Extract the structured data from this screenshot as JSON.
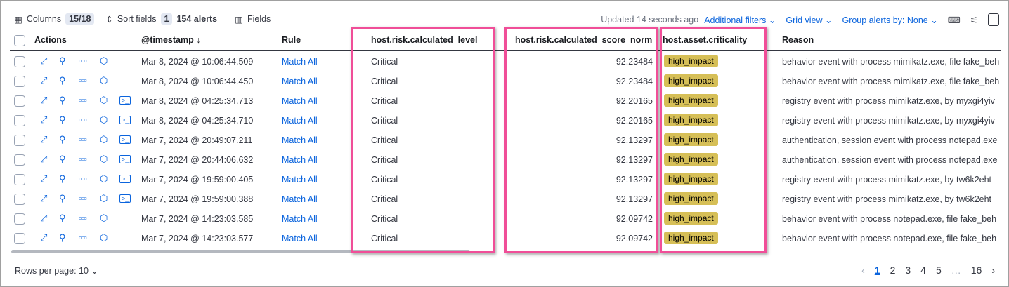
{
  "toolbar": {
    "columns_label": "Columns",
    "columns_count": "15/18",
    "sort_label": "Sort fields",
    "sort_count": "1",
    "alerts": "154 alerts",
    "fields_label": "Fields",
    "updated": "Updated 14 seconds ago",
    "additional_filters": "Additional filters",
    "grid_view": "Grid view",
    "group_by": "Group alerts by: None"
  },
  "headers": {
    "actions": "Actions",
    "timestamp": "@timestamp",
    "rule": "Rule",
    "level": "host.risk.calculated_level",
    "score": "host.risk.calculated_score_norm",
    "criticality": "host.asset.criticality",
    "reason": "Reason"
  },
  "rows": [
    {
      "timestamp": "Mar 8, 2024 @ 10:06:44.509",
      "rule": "Match All",
      "level": "Critical",
      "score": "92.23484",
      "criticality": "high_impact",
      "reason": "behavior event with process mimikatz.exe, file fake_beh",
      "terminal": false
    },
    {
      "timestamp": "Mar 8, 2024 @ 10:06:44.450",
      "rule": "Match All",
      "level": "Critical",
      "score": "92.23484",
      "criticality": "high_impact",
      "reason": "behavior event with process mimikatz.exe, file fake_beh",
      "terminal": false
    },
    {
      "timestamp": "Mar 8, 2024 @ 04:25:34.713",
      "rule": "Match All",
      "level": "Critical",
      "score": "92.20165",
      "criticality": "high_impact",
      "reason": "registry event with process mimikatz.exe, by myxgi4yiv",
      "terminal": true
    },
    {
      "timestamp": "Mar 8, 2024 @ 04:25:34.710",
      "rule": "Match All",
      "level": "Critical",
      "score": "92.20165",
      "criticality": "high_impact",
      "reason": "registry event with process mimikatz.exe, by myxgi4yiv",
      "terminal": true
    },
    {
      "timestamp": "Mar 7, 2024 @ 20:49:07.211",
      "rule": "Match All",
      "level": "Critical",
      "score": "92.13297",
      "criticality": "high_impact",
      "reason": "authentication, session event with process notepad.exe",
      "terminal": true
    },
    {
      "timestamp": "Mar 7, 2024 @ 20:44:06.632",
      "rule": "Match All",
      "level": "Critical",
      "score": "92.13297",
      "criticality": "high_impact",
      "reason": "authentication, session event with process notepad.exe",
      "terminal": true
    },
    {
      "timestamp": "Mar 7, 2024 @ 19:59:00.405",
      "rule": "Match All",
      "level": "Critical",
      "score": "92.13297",
      "criticality": "high_impact",
      "reason": "registry event with process mimikatz.exe, by tw6k2eht",
      "terminal": true
    },
    {
      "timestamp": "Mar 7, 2024 @ 19:59:00.388",
      "rule": "Match All",
      "level": "Critical",
      "score": "92.13297",
      "criticality": "high_impact",
      "reason": "registry event with process mimikatz.exe, by tw6k2eht",
      "terminal": true
    },
    {
      "timestamp": "Mar 7, 2024 @ 14:23:03.585",
      "rule": "Match All",
      "level": "Critical",
      "score": "92.09742",
      "criticality": "high_impact",
      "reason": "behavior event with process notepad.exe, file fake_beh",
      "terminal": false
    },
    {
      "timestamp": "Mar 7, 2024 @ 14:23:03.577",
      "rule": "Match All",
      "level": "Critical",
      "score": "92.09742",
      "criticality": "high_impact",
      "reason": "behavior event with process notepad.exe, file fake_beh",
      "terminal": false
    }
  ],
  "footer": {
    "rows_per_page": "Rows per page: 10",
    "pages": [
      "1",
      "2",
      "3",
      "4",
      "5",
      "…",
      "16"
    ],
    "current_page": "1"
  },
  "colors": {
    "highlight": "#f04e98",
    "badge": "#d6bf57",
    "link": "#0b64dd"
  }
}
